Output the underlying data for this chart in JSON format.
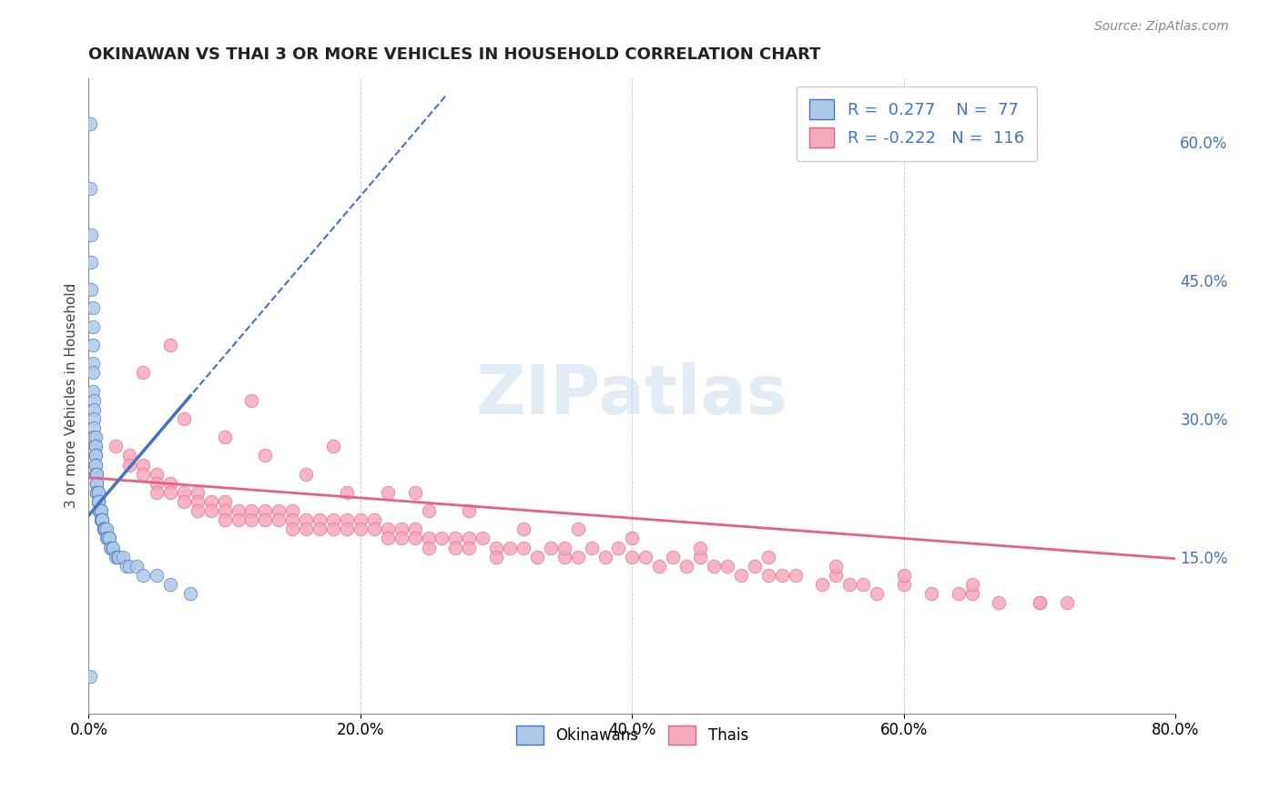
{
  "title": "OKINAWAN VS THAI 3 OR MORE VEHICLES IN HOUSEHOLD CORRELATION CHART",
  "source": "Source: ZipAtlas.com",
  "ylabel": "3 or more Vehicles in Household",
  "legend_okinawan": "Okinawans",
  "legend_thai": "Thais",
  "r_okinawan": 0.277,
  "n_okinawan": 77,
  "r_thai": -0.222,
  "n_thai": 116,
  "okinawan_color": "#adc9e8",
  "thai_color": "#f5aabc",
  "okinawan_line_color": "#4472c4",
  "thai_line_color": "#e8608a",
  "xlim": [
    0.0,
    0.8
  ],
  "ylim": [
    -0.02,
    0.67
  ],
  "x_ticks": [
    0.0,
    0.2,
    0.4,
    0.6,
    0.8
  ],
  "x_tick_labels": [
    "0.0%",
    "20.0%",
    "40.0%",
    "60.0%",
    "80.0%"
  ],
  "y_ticks_right": [
    0.15,
    0.3,
    0.45,
    0.6
  ],
  "y_tick_labels_right": [
    "15.0%",
    "30.0%",
    "45.0%",
    "60.0%"
  ],
  "watermark": "ZIPatlas",
  "okinawan_x": [
    0.001,
    0.001,
    0.002,
    0.002,
    0.002,
    0.003,
    0.003,
    0.003,
    0.003,
    0.003,
    0.003,
    0.004,
    0.004,
    0.004,
    0.004,
    0.004,
    0.005,
    0.005,
    0.005,
    0.005,
    0.005,
    0.005,
    0.005,
    0.005,
    0.006,
    0.006,
    0.006,
    0.006,
    0.006,
    0.006,
    0.006,
    0.006,
    0.007,
    0.007,
    0.007,
    0.007,
    0.007,
    0.007,
    0.008,
    0.008,
    0.008,
    0.008,
    0.008,
    0.008,
    0.009,
    0.009,
    0.009,
    0.009,
    0.01,
    0.01,
    0.01,
    0.01,
    0.011,
    0.011,
    0.011,
    0.012,
    0.012,
    0.013,
    0.013,
    0.014,
    0.015,
    0.015,
    0.016,
    0.017,
    0.018,
    0.02,
    0.021,
    0.022,
    0.025,
    0.028,
    0.03,
    0.035,
    0.04,
    0.05,
    0.06,
    0.075,
    0.001
  ],
  "okinawan_y": [
    0.62,
    0.55,
    0.5,
    0.47,
    0.44,
    0.42,
    0.4,
    0.38,
    0.36,
    0.35,
    0.33,
    0.32,
    0.31,
    0.3,
    0.29,
    0.28,
    0.28,
    0.27,
    0.27,
    0.26,
    0.26,
    0.25,
    0.25,
    0.24,
    0.24,
    0.24,
    0.23,
    0.23,
    0.23,
    0.22,
    0.22,
    0.22,
    0.22,
    0.22,
    0.21,
    0.21,
    0.21,
    0.21,
    0.2,
    0.2,
    0.2,
    0.2,
    0.2,
    0.2,
    0.2,
    0.2,
    0.19,
    0.19,
    0.19,
    0.19,
    0.19,
    0.19,
    0.18,
    0.18,
    0.18,
    0.18,
    0.18,
    0.18,
    0.17,
    0.17,
    0.17,
    0.17,
    0.16,
    0.16,
    0.16,
    0.15,
    0.15,
    0.15,
    0.15,
    0.14,
    0.14,
    0.14,
    0.13,
    0.13,
    0.12,
    0.11,
    0.02
  ],
  "thai_x": [
    0.02,
    0.03,
    0.03,
    0.04,
    0.04,
    0.05,
    0.05,
    0.05,
    0.06,
    0.06,
    0.07,
    0.07,
    0.08,
    0.08,
    0.08,
    0.09,
    0.09,
    0.1,
    0.1,
    0.1,
    0.11,
    0.11,
    0.12,
    0.12,
    0.13,
    0.13,
    0.14,
    0.14,
    0.15,
    0.15,
    0.15,
    0.16,
    0.16,
    0.17,
    0.17,
    0.18,
    0.18,
    0.19,
    0.19,
    0.2,
    0.2,
    0.21,
    0.21,
    0.22,
    0.22,
    0.23,
    0.23,
    0.24,
    0.24,
    0.25,
    0.25,
    0.26,
    0.27,
    0.27,
    0.28,
    0.28,
    0.29,
    0.3,
    0.3,
    0.31,
    0.32,
    0.33,
    0.34,
    0.35,
    0.35,
    0.36,
    0.37,
    0.38,
    0.39,
    0.4,
    0.41,
    0.42,
    0.43,
    0.44,
    0.45,
    0.46,
    0.47,
    0.48,
    0.49,
    0.5,
    0.51,
    0.52,
    0.54,
    0.55,
    0.56,
    0.57,
    0.58,
    0.6,
    0.62,
    0.64,
    0.65,
    0.67,
    0.7,
    0.72,
    0.04,
    0.07,
    0.1,
    0.13,
    0.16,
    0.19,
    0.22,
    0.25,
    0.28,
    0.32,
    0.36,
    0.4,
    0.45,
    0.5,
    0.55,
    0.6,
    0.65,
    0.7,
    0.06,
    0.12,
    0.18,
    0.24
  ],
  "thai_y": [
    0.27,
    0.26,
    0.25,
    0.25,
    0.24,
    0.24,
    0.23,
    0.22,
    0.23,
    0.22,
    0.22,
    0.21,
    0.22,
    0.21,
    0.2,
    0.21,
    0.2,
    0.21,
    0.2,
    0.19,
    0.2,
    0.19,
    0.2,
    0.19,
    0.2,
    0.19,
    0.2,
    0.19,
    0.2,
    0.19,
    0.18,
    0.19,
    0.18,
    0.19,
    0.18,
    0.19,
    0.18,
    0.19,
    0.18,
    0.19,
    0.18,
    0.19,
    0.18,
    0.18,
    0.17,
    0.18,
    0.17,
    0.18,
    0.17,
    0.17,
    0.16,
    0.17,
    0.17,
    0.16,
    0.17,
    0.16,
    0.17,
    0.16,
    0.15,
    0.16,
    0.16,
    0.15,
    0.16,
    0.15,
    0.16,
    0.15,
    0.16,
    0.15,
    0.16,
    0.15,
    0.15,
    0.14,
    0.15,
    0.14,
    0.15,
    0.14,
    0.14,
    0.13,
    0.14,
    0.13,
    0.13,
    0.13,
    0.12,
    0.13,
    0.12,
    0.12,
    0.11,
    0.12,
    0.11,
    0.11,
    0.11,
    0.1,
    0.1,
    0.1,
    0.35,
    0.3,
    0.28,
    0.26,
    0.24,
    0.22,
    0.22,
    0.2,
    0.2,
    0.18,
    0.18,
    0.17,
    0.16,
    0.15,
    0.14,
    0.13,
    0.12,
    0.1,
    0.38,
    0.32,
    0.27,
    0.22
  ],
  "ok_trend_x0": 0.0,
  "ok_trend_y0": 0.195,
  "ok_trend_x1": 0.075,
  "ok_trend_y1": 0.325,
  "ok_trend_dash_x0": -0.01,
  "ok_trend_dash_y0": 0.177,
  "ok_trend_dash_x1": 0.008,
  "ok_trend_dash_y1": 0.209,
  "thai_trend_x0": 0.0,
  "thai_trend_y0": 0.236,
  "thai_trend_x1": 0.8,
  "thai_trend_y1": 0.148
}
